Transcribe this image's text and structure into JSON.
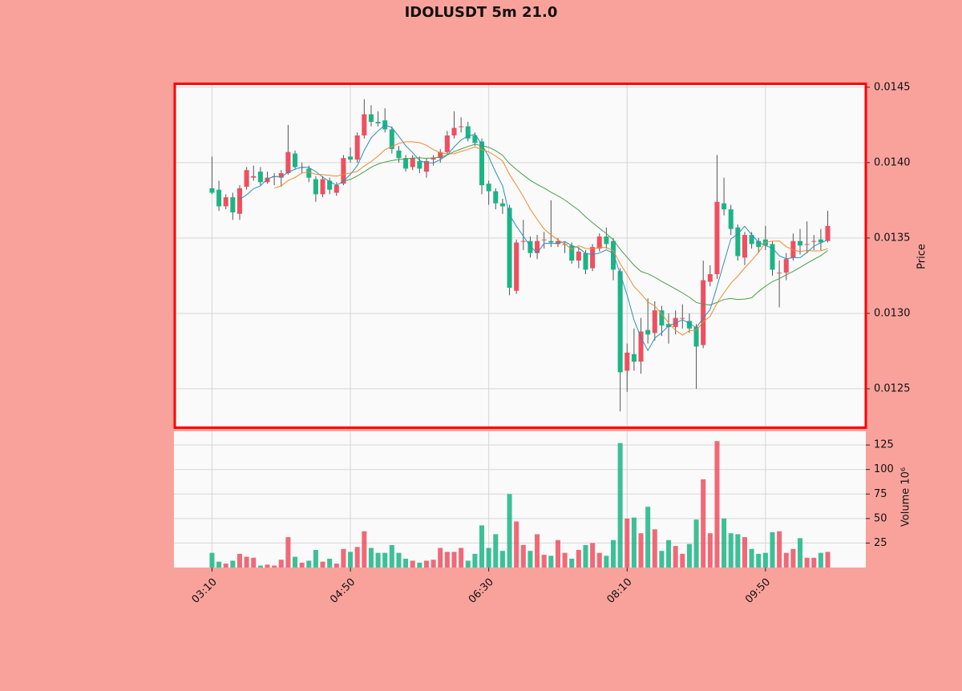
{
  "chart_data": {
    "type": "candlestick",
    "title": "IDOLUSDT 5m 21.0",
    "ylabel": "Price",
    "y2label": "Volume  10⁶",
    "up_color": "#ef4f5f",
    "down_color": "#1bb585",
    "wick_color": "#555555",
    "mav": [
      5,
      10,
      20
    ],
    "mav_colors": [
      "#2a8fbd",
      "#ef8a2e",
      "#4a9e4a"
    ],
    "grid": true,
    "xlim": [
      -5.5,
      94.5
    ],
    "xticks": [
      {
        "value": 0,
        "label": "03:10"
      },
      {
        "value": 20,
        "label": "04:50"
      },
      {
        "value": 40,
        "label": "06:30"
      },
      {
        "value": 60,
        "label": "08:10"
      },
      {
        "value": 80,
        "label": "09:50"
      }
    ],
    "ylim": [
      0.012245,
      0.01452
    ],
    "yticks": [
      0.0125,
      {
        "value": 0.013,
        "label": "0.0130"
      },
      0.0135,
      {
        "value": 0.014,
        "label": "0.0140"
      },
      0.0145
    ],
    "y2lim": [
      0,
      139
    ],
    "y2ticks": [
      25,
      50,
      75,
      100,
      125
    ],
    "open": [
      0.01383,
      0.01382,
      0.01371,
      0.01377,
      0.01366,
      0.01384,
      0.0139,
      0.01394,
      0.01387,
      0.01391,
      0.0139,
      0.01393,
      0.01406,
      0.01397,
      0.01396,
      0.01389,
      0.01379,
      0.01388,
      0.0138,
      0.01386,
      0.01404,
      0.01402,
      0.01418,
      0.01432,
      0.01427,
      0.01428,
      0.01422,
      0.01408,
      0.01403,
      0.01397,
      0.01401,
      0.01394,
      0.01402,
      0.01403,
      0.01407,
      0.01418,
      0.01424,
      0.01424,
      0.01418,
      0.01414,
      0.01386,
      0.01381,
      0.01373,
      0.0137,
      0.01315,
      0.01348,
      0.01348,
      0.0134,
      0.01349,
      0.01348,
      0.01346,
      0.01346,
      0.01345,
      0.01335,
      0.0134,
      0.0133,
      0.01343,
      0.01351,
      0.01348,
      0.01328,
      0.01262,
      0.01273,
      0.01268,
      0.01289,
      0.01287,
      0.01302,
      0.01293,
      0.01291,
      0.01297,
      0.01295,
      0.01291,
      0.01279,
      0.01321,
      0.01326,
      0.01373,
      0.01369,
      0.01357,
      0.01337,
      0.01352,
      0.01348,
      0.01349,
      0.01346,
      0.01327,
      0.01327,
      0.01337,
      0.01348,
      0.01346,
      0.01348,
      0.01349,
      0.01348
    ],
    "high": [
      0.01404,
      0.01388,
      0.01379,
      0.0138,
      0.01385,
      0.01397,
      0.01398,
      0.01397,
      0.01394,
      0.01393,
      0.01395,
      0.01425,
      0.01408,
      0.014,
      0.01398,
      0.01391,
      0.01391,
      0.0139,
      0.01387,
      0.01405,
      0.0141,
      0.0142,
      0.01442,
      0.01438,
      0.01434,
      0.01436,
      0.01424,
      0.01411,
      0.01405,
      0.01405,
      0.01404,
      0.01403,
      0.01405,
      0.01409,
      0.01421,
      0.01434,
      0.0143,
      0.01427,
      0.0142,
      0.01416,
      0.01388,
      0.01383,
      0.01376,
      0.01372,
      0.01349,
      0.01362,
      0.01351,
      0.01352,
      0.01354,
      0.01375,
      0.0135,
      0.01348,
      0.01347,
      0.01344,
      0.01342,
      0.01346,
      0.01353,
      0.01357,
      0.0135,
      0.0133,
      0.0128,
      0.0129,
      0.01297,
      0.0131,
      0.01308,
      0.01305,
      0.013,
      0.01302,
      0.01306,
      0.013,
      0.01293,
      0.01335,
      0.01332,
      0.01405,
      0.0139,
      0.01372,
      0.01359,
      0.01354,
      0.01354,
      0.0135,
      0.01358,
      0.01348,
      0.01335,
      0.0134,
      0.01353,
      0.01356,
      0.01361,
      0.01352,
      0.01356,
      0.01368
    ],
    "low": [
      0.01379,
      0.01368,
      0.01369,
      0.01362,
      0.01362,
      0.01382,
      0.01388,
      0.01385,
      0.01386,
      0.01385,
      0.01384,
      0.01392,
      0.01396,
      0.01393,
      0.01387,
      0.01374,
      0.01377,
      0.01379,
      0.01378,
      0.01385,
      0.014,
      0.014,
      0.01416,
      0.01424,
      0.01424,
      0.0142,
      0.01406,
      0.014,
      0.01394,
      0.01395,
      0.01393,
      0.0139,
      0.01398,
      0.014,
      0.01405,
      0.01416,
      0.0142,
      0.01414,
      0.01411,
      0.01379,
      0.01372,
      0.01369,
      0.01366,
      0.01312,
      0.01313,
      0.01342,
      0.01337,
      0.01336,
      0.01343,
      0.01344,
      0.01344,
      0.0134,
      0.01333,
      0.0133,
      0.01326,
      0.01328,
      0.01341,
      0.01343,
      0.01322,
      0.01235,
      0.01248,
      0.01262,
      0.0126,
      0.0128,
      0.01282,
      0.01285,
      0.0128,
      0.01286,
      0.0129,
      0.01287,
      0.0125,
      0.01277,
      0.01318,
      0.01323,
      0.01365,
      0.01352,
      0.01335,
      0.01332,
      0.01343,
      0.0134,
      0.01342,
      0.01325,
      0.01304,
      0.01322,
      0.01335,
      0.01339,
      0.0134,
      0.01342,
      0.01342,
      0.01347
    ],
    "close": [
      0.0138,
      0.01371,
      0.01377,
      0.01367,
      0.01383,
      0.01395,
      0.01391,
      0.01387,
      0.0139,
      0.01391,
      0.01393,
      0.01407,
      0.01397,
      0.01397,
      0.0139,
      0.01379,
      0.01389,
      0.01382,
      0.01385,
      0.01403,
      0.01402,
      0.01418,
      0.01432,
      0.01427,
      0.01426,
      0.01422,
      0.01409,
      0.01403,
      0.01396,
      0.01403,
      0.01396,
      0.01401,
      0.01403,
      0.01407,
      0.01418,
      0.01423,
      0.01424,
      0.01416,
      0.01413,
      0.01385,
      0.01381,
      0.01373,
      0.01371,
      0.01317,
      0.01347,
      0.01348,
      0.0134,
      0.01348,
      0.01349,
      0.01347,
      0.01348,
      0.01346,
      0.01335,
      0.01341,
      0.01329,
      0.01344,
      0.01351,
      0.01346,
      0.01329,
      0.01261,
      0.01274,
      0.01268,
      0.01288,
      0.01286,
      0.01302,
      0.01292,
      0.01291,
      0.01297,
      0.01297,
      0.0129,
      0.01278,
      0.01322,
      0.01326,
      0.01374,
      0.01369,
      0.01356,
      0.01338,
      0.01352,
      0.01346,
      0.01344,
      0.01345,
      0.01329,
      0.01327,
      0.01336,
      0.01348,
      0.01345,
      0.01346,
      0.01348,
      0.01347,
      0.01358
    ],
    "volume": [
      15,
      6,
      4,
      7,
      14,
      11,
      10,
      2,
      3,
      2,
      8,
      31,
      11,
      5,
      7,
      18,
      6,
      9,
      4,
      19,
      16,
      21,
      37,
      20,
      15,
      15,
      23,
      15,
      9,
      7,
      5,
      7,
      8,
      20,
      16,
      16,
      20,
      7,
      14,
      43,
      20,
      34,
      17,
      75,
      47,
      23,
      17,
      34,
      13,
      12,
      28,
      15,
      9,
      18,
      23,
      25,
      15,
      12,
      28,
      127,
      50,
      51,
      35,
      62,
      39,
      17,
      28,
      22,
      14,
      24,
      49,
      90,
      35,
      129,
      50,
      35,
      34,
      31,
      19,
      14,
      15,
      36,
      37,
      15,
      19,
      30,
      10,
      10,
      15,
      16
    ]
  }
}
